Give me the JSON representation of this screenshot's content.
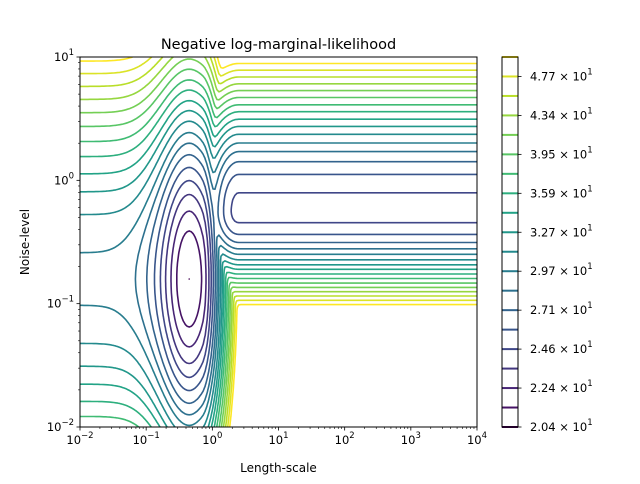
{
  "chart_data": {
    "type": "contour",
    "title": "Negative log-marginal-likelihood",
    "xlabel": "Length-scale",
    "ylabel": "Noise-level",
    "xscale": "log",
    "yscale": "log",
    "xlim": [
      0.01,
      10000
    ],
    "ylim": [
      0.01,
      10
    ],
    "colormap": "viridis",
    "grid": false,
    "minimum_location": {
      "length_scale": 0.45,
      "noise_level": 0.15
    },
    "levels": [
      20.4,
      21.4,
      22.4,
      23.5,
      24.6,
      25.8,
      27.1,
      28.4,
      29.7,
      31.2,
      32.7,
      34.2,
      35.9,
      37.6,
      39.5,
      41.4,
      43.4,
      45.5,
      47.7,
      50.0
    ],
    "x_ticks": [
      {
        "value": 0.01,
        "base": "10",
        "exp": "−2"
      },
      {
        "value": 0.1,
        "base": "10",
        "exp": "−1"
      },
      {
        "value": 1,
        "base": "10",
        "exp": "0"
      },
      {
        "value": 10,
        "base": "10",
        "exp": "1"
      },
      {
        "value": 100,
        "base": "10",
        "exp": "2"
      },
      {
        "value": 1000,
        "base": "10",
        "exp": "3"
      },
      {
        "value": 10000,
        "base": "10",
        "exp": "4"
      }
    ],
    "y_ticks": [
      {
        "value": 0.01,
        "base": "10",
        "exp": "−2"
      },
      {
        "value": 0.1,
        "base": "10",
        "exp": "−1"
      },
      {
        "value": 1,
        "base": "10",
        "exp": "0"
      },
      {
        "value": 10,
        "base": "10",
        "exp": "1"
      }
    ],
    "colorbar_ticks": [
      {
        "value": 20.4,
        "label": "2.04 × 10",
        "exp": "1"
      },
      {
        "value": 22.4,
        "label": "2.24 × 10",
        "exp": "1"
      },
      {
        "value": 24.6,
        "label": "2.46 × 10",
        "exp": "1"
      },
      {
        "value": 27.1,
        "label": "2.71 × 10",
        "exp": "1"
      },
      {
        "value": 29.7,
        "label": "2.97 × 10",
        "exp": "1"
      },
      {
        "value": 32.7,
        "label": "3.27 × 10",
        "exp": "1"
      },
      {
        "value": 35.9,
        "label": "3.59 × 10",
        "exp": "1"
      },
      {
        "value": 39.5,
        "label": "3.95 × 10",
        "exp": "1"
      },
      {
        "value": 43.4,
        "label": "4.34 × 10",
        "exp": "1"
      },
      {
        "value": 47.7,
        "label": "4.77 × 10",
        "exp": "1"
      }
    ]
  }
}
